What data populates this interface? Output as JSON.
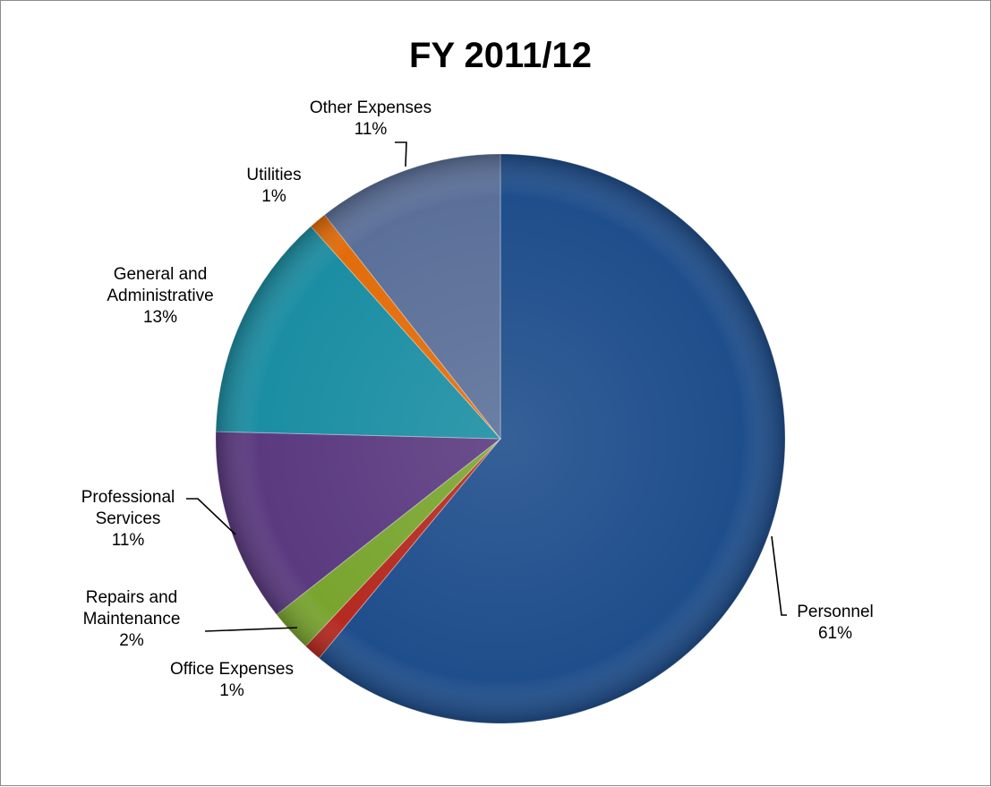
{
  "chart_data": {
    "type": "pie",
    "title": "FY 2011/12",
    "slices": [
      {
        "label": [
          "Personnel"
        ],
        "percent_label": "61%",
        "value": 61,
        "color": "#1f4e8c"
      },
      {
        "label": [
          "Office Expenses"
        ],
        "percent_label": "1%",
        "value": 1,
        "color": "#b52a20"
      },
      {
        "label": [
          "Repairs and",
          "Maintenance"
        ],
        "percent_label": "2%",
        "value": 2.4,
        "color": "#79a52f"
      },
      {
        "label": [
          "Professional",
          "Services"
        ],
        "percent_label": "11%",
        "value": 11,
        "color": "#5b3a80"
      },
      {
        "label": [
          "General and",
          "Administrative"
        ],
        "percent_label": "13%",
        "value": 13,
        "color": "#1b8ea3"
      },
      {
        "label": [
          "Utilities"
        ],
        "percent_label": "1%",
        "value": 1,
        "color": "#e36c0a"
      },
      {
        "label": [
          "Other Expenses"
        ],
        "percent_label": "11%",
        "value": 10.6,
        "color": "#5b7099"
      }
    ],
    "start_angle_deg": 0,
    "direction": "clockwise",
    "legend": "none",
    "data_labels": "outside-with-leader-lines"
  }
}
